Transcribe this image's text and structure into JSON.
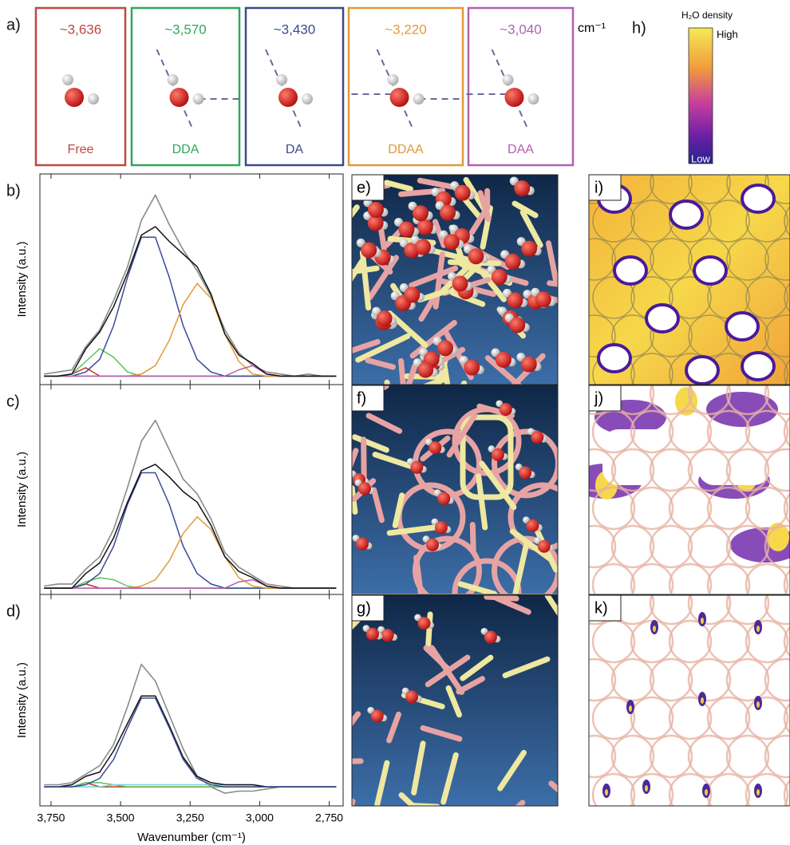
{
  "panels": {
    "a": "a)",
    "e": "e)",
    "f": "f)",
    "g": "g)",
    "h": "h)",
    "i": "i)",
    "j": "j)",
    "k": "k)"
  },
  "molecules": [
    {
      "frequency": "~3,636",
      "label": "Free",
      "color": "#c0473f"
    },
    {
      "frequency": "~3,570",
      "label": "DDA",
      "color": "#2fa85a"
    },
    {
      "frequency": "~3,430",
      "label": "DA",
      "color": "#3a4a8e"
    },
    {
      "frequency": "~3,220",
      "label": "DDAA",
      "color": "#e3983a"
    },
    {
      "frequency": "~3,040",
      "label": "DAA",
      "color": "#b160b3"
    }
  ],
  "unit": "cm⁻¹",
  "colorbar": {
    "title": "H₂O density",
    "high": "High",
    "low": "Low"
  },
  "chart_data": [
    {
      "type": "line",
      "panel_label": "b)",
      "y_label": "Intensity (a.u.)",
      "x": [
        3775,
        3725,
        3675,
        3625,
        3575,
        3525,
        3475,
        3425,
        3375,
        3325,
        3275,
        3225,
        3175,
        3125,
        3075,
        3025,
        2975,
        2925,
        2875,
        2825,
        2775,
        2725
      ],
      "xlim": [
        3790,
        2700
      ],
      "xticks": [
        3750,
        3500,
        3250,
        3000,
        2750
      ],
      "ylim": [
        -0.04,
        0.96
      ],
      "series": [
        {
          "color": "#8a8a8a",
          "values": [
            0.01,
            0.02,
            0.03,
            0.14,
            0.22,
            0.36,
            0.52,
            0.74,
            0.86,
            0.72,
            0.6,
            0.5,
            0.38,
            0.22,
            0.11,
            0.05,
            0.02,
            0.01,
            0,
            0.01,
            0,
            0
          ]
        },
        {
          "color": "#c0392b",
          "values": [
            0,
            0,
            0.01,
            0.04,
            0,
            0,
            0,
            0,
            0,
            0,
            0,
            0,
            0,
            0,
            0,
            0,
            0,
            0,
            0,
            0,
            0,
            0
          ]
        },
        {
          "color": "#5fc25f",
          "values": [
            0,
            0,
            0.01,
            0.07,
            0.13,
            0.09,
            0.02,
            0,
            0,
            0,
            0,
            0,
            0,
            0,
            0,
            0,
            0,
            0,
            0,
            0,
            0,
            0
          ]
        },
        {
          "color": "#3a4a96",
          "values": [
            0,
            0,
            0,
            0.02,
            0.08,
            0.24,
            0.47,
            0.66,
            0.66,
            0.47,
            0.24,
            0.08,
            0.02,
            0,
            0,
            0,
            0,
            0,
            0,
            0,
            0,
            0
          ]
        },
        {
          "color": "#e39a34",
          "values": [
            0,
            0,
            0,
            0,
            0,
            0,
            0,
            0.01,
            0.05,
            0.17,
            0.34,
            0.44,
            0.37,
            0.2,
            0.07,
            0.01,
            0,
            0,
            0,
            0,
            0,
            0
          ]
        },
        {
          "color": "#b35cb3",
          "values": [
            0,
            0,
            0,
            0,
            0,
            0,
            0,
            0,
            0,
            0,
            0,
            0,
            0,
            0,
            0.03,
            0.05,
            0.01,
            0,
            0,
            0,
            0,
            0
          ]
        },
        {
          "color": "#111111",
          "values": [
            0,
            0,
            0.01,
            0.13,
            0.21,
            0.33,
            0.49,
            0.67,
            0.71,
            0.64,
            0.58,
            0.52,
            0.39,
            0.2,
            0.1,
            0.06,
            0.01,
            0,
            0,
            0,
            0,
            0
          ]
        }
      ]
    },
    {
      "type": "line",
      "panel_label": "c)",
      "y_label": "Intensity (a.u.)",
      "x": [
        3775,
        3725,
        3675,
        3625,
        3575,
        3525,
        3475,
        3425,
        3375,
        3325,
        3275,
        3225,
        3175,
        3125,
        3075,
        3025,
        2975,
        2925,
        2875,
        2825,
        2775,
        2725
      ],
      "xlim": [
        3790,
        2700
      ],
      "xticks": [
        3750,
        3500,
        3250,
        3000,
        2750
      ],
      "ylim": [
        -0.03,
        0.97
      ],
      "series": [
        {
          "color": "#8a8a8a",
          "values": [
            0.01,
            0.02,
            0.02,
            0.09,
            0.15,
            0.28,
            0.48,
            0.7,
            0.8,
            0.66,
            0.52,
            0.45,
            0.33,
            0.17,
            0.1,
            0.06,
            0.02,
            0.01,
            0,
            0,
            0,
            0
          ]
        },
        {
          "color": "#c0392b",
          "values": [
            0,
            0,
            0,
            0.02,
            0,
            0,
            0,
            0,
            0,
            0,
            0,
            0,
            0,
            0,
            0,
            0,
            0,
            0,
            0,
            0,
            0,
            0
          ]
        },
        {
          "color": "#5fc25f",
          "values": [
            0,
            0,
            0,
            0.03,
            0.05,
            0.04,
            0.01,
            0,
            0,
            0,
            0,
            0,
            0,
            0,
            0,
            0,
            0,
            0,
            0,
            0,
            0,
            0
          ]
        },
        {
          "color": "#3a4a96",
          "values": [
            0,
            0,
            0,
            0.02,
            0.07,
            0.2,
            0.4,
            0.55,
            0.55,
            0.4,
            0.2,
            0.07,
            0.02,
            0,
            0,
            0,
            0,
            0,
            0,
            0,
            0,
            0
          ]
        },
        {
          "color": "#e39a34",
          "values": [
            0,
            0,
            0,
            0,
            0,
            0,
            0,
            0.01,
            0.04,
            0.13,
            0.26,
            0.34,
            0.28,
            0.15,
            0.05,
            0.01,
            0,
            0,
            0,
            0,
            0,
            0
          ]
        },
        {
          "color": "#b35cb3",
          "values": [
            0,
            0,
            0,
            0,
            0,
            0,
            0,
            0,
            0,
            0,
            0,
            0,
            0,
            0,
            0.03,
            0.04,
            0.01,
            0,
            0,
            0,
            0,
            0
          ]
        },
        {
          "color": "#111111",
          "values": [
            0,
            0,
            0,
            0.07,
            0.12,
            0.24,
            0.41,
            0.56,
            0.59,
            0.53,
            0.46,
            0.41,
            0.3,
            0.15,
            0.08,
            0.05,
            0.01,
            0,
            0,
            0,
            0,
            0
          ]
        }
      ]
    },
    {
      "type": "line",
      "panel_label": "d)",
      "y_label": "Intensity (a.u.)",
      "x_label": "Wavenumber (cm⁻¹)",
      "x": [
        3775,
        3725,
        3675,
        3625,
        3575,
        3525,
        3475,
        3425,
        3375,
        3325,
        3275,
        3225,
        3175,
        3125,
        3075,
        3025,
        2975,
        2925,
        2875,
        2825,
        2775,
        2725
      ],
      "xlim": [
        3790,
        2700
      ],
      "xticks": [
        {
          "value": 3750,
          "label": "3,750"
        },
        {
          "value": 3500,
          "label": "3,500"
        },
        {
          "value": 3250,
          "label": "3,250"
        },
        {
          "value": 3000,
          "label": "3,000"
        },
        {
          "value": 2750,
          "label": "2,750"
        }
      ],
      "ylim": [
        -0.09,
        0.91
      ],
      "series": [
        {
          "color": "#8a8a8a",
          "values": [
            0.01,
            0.01,
            0.02,
            0.06,
            0.1,
            0.2,
            0.38,
            0.58,
            0.5,
            0.34,
            0.18,
            0.05,
            0,
            -0.03,
            -0.02,
            -0.02,
            -0.01,
            0,
            0,
            0,
            0,
            0
          ]
        },
        {
          "color": "#c0392b",
          "values": [
            0,
            0,
            0,
            0.02,
            0,
            0,
            0,
            0,
            0,
            0,
            0,
            0,
            0,
            0,
            0,
            0,
            0,
            0,
            0,
            0,
            0,
            0
          ]
        },
        {
          "color": "#5fc25f",
          "values": [
            0,
            0,
            0,
            0.02,
            0.02,
            0.01,
            0,
            0,
            0,
            0,
            0,
            0,
            0,
            0,
            0,
            0,
            0,
            0,
            0,
            0,
            0,
            0
          ]
        },
        {
          "color": "#7fd0d8",
          "values": [
            0,
            0,
            0,
            0,
            0,
            0.01,
            0.01,
            0.01,
            0.01,
            0.01,
            0.01,
            0.01,
            0.01,
            0.01,
            0.01,
            0.01,
            0,
            0,
            0,
            0,
            0,
            0
          ]
        },
        {
          "color": "#111111",
          "values": [
            0,
            0,
            0.01,
            0.05,
            0.07,
            0.17,
            0.3,
            0.43,
            0.43,
            0.29,
            0.14,
            0.05,
            0.02,
            0.01,
            0.01,
            0.01,
            0,
            0,
            0,
            0,
            0,
            0
          ]
        },
        {
          "color": "#3a4a96",
          "values": [
            0,
            0,
            0,
            0.01,
            0.04,
            0.13,
            0.28,
            0.42,
            0.42,
            0.28,
            0.13,
            0.04,
            0.01,
            0,
            0,
            0,
            0,
            0,
            0,
            0,
            0,
            0
          ]
        }
      ]
    }
  ]
}
